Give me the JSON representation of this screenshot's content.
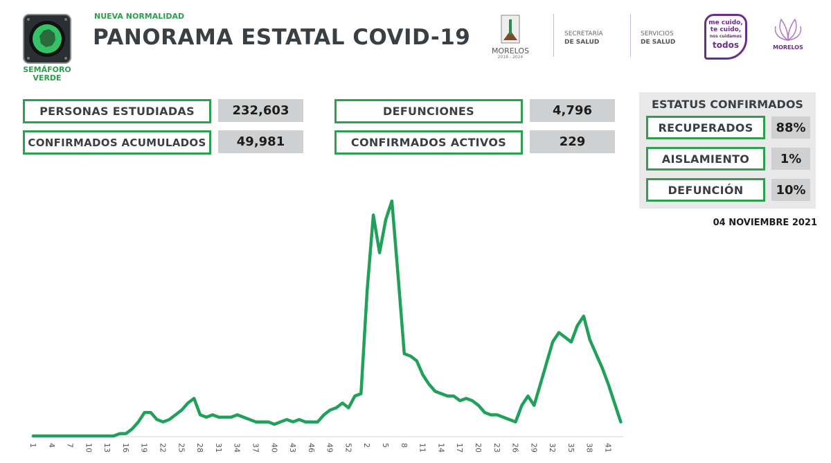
{
  "header": {
    "badge_label": "SEMÁFORO VERDE",
    "badge_line1": "SEMÁFORO",
    "badge_line2": "VERDE",
    "subtitle": "NUEVA NORMALIDAD",
    "title": "PANORAMA ESTATAL COVID-19",
    "logos": {
      "morelos": "MORELOS",
      "morelos_years": "2018 - 2024",
      "secretaria_line1": "SECRETARÍA",
      "secretaria_line2": "DE SALUD",
      "servicios_line1": "SERVICIOS",
      "servicios_line2": "DE SALUD",
      "campaign_line1": "me cuido,",
      "campaign_line2": "te cuido,",
      "campaign_line3": "nos cuidamos",
      "campaign_line4": "todos",
      "morelos2": "MORELOS"
    }
  },
  "stats": [
    {
      "label": "PERSONAS ESTUDIADAS",
      "value": "232,603"
    },
    {
      "label": "CONFIRMADOS ACUMULADOS",
      "value": "49,981"
    },
    {
      "label": "DEFUNCIONES",
      "value": "4,796"
    },
    {
      "label": "CONFIRMADOS ACTIVOS",
      "value": "229"
    }
  ],
  "status": {
    "title": "ESTATUS CONFIRMADOS",
    "items": [
      {
        "label": "RECUPERADOS",
        "value": "88%"
      },
      {
        "label": "AISLAMIENTO",
        "value": "1%"
      },
      {
        "label": "DEFUNCIÓN",
        "value": "10%"
      }
    ]
  },
  "date": "04 NOVIEMBRE 2021",
  "colors": {
    "accent": "#2e9e50",
    "line": "#1fa15a",
    "value_bg": "#cfd0d1",
    "panel_bg": "#e9e9e9",
    "title": "#3a3f44"
  },
  "chart_data": {
    "type": "line",
    "title": "",
    "xlabel": "",
    "ylabel": "",
    "note_y": "relative scale, no y-axis printed (peak = 100)",
    "grid": false,
    "x": [
      1,
      2,
      3,
      4,
      5,
      6,
      7,
      8,
      9,
      10,
      11,
      12,
      13,
      14,
      15,
      16,
      17,
      18,
      19,
      20,
      21,
      22,
      23,
      24,
      25,
      26,
      27,
      28,
      29,
      30,
      31,
      32,
      33,
      34,
      35,
      36,
      37,
      38,
      39,
      40,
      41,
      42,
      43,
      44,
      45,
      46,
      47,
      48,
      49,
      50,
      51,
      52,
      53,
      1,
      2,
      3,
      4,
      5,
      6,
      7,
      8,
      9,
      10,
      11,
      12,
      13,
      14,
      15,
      16,
      17,
      18,
      19,
      20,
      21,
      22,
      23,
      24,
      25,
      26,
      27,
      28,
      29,
      30,
      31,
      32,
      33,
      34,
      35,
      36,
      37,
      38,
      39,
      40,
      41,
      42,
      43
    ],
    "tick_labels": [
      "1",
      "4",
      "7",
      "10",
      "13",
      "16",
      "19",
      "22",
      "25",
      "28",
      "31",
      "34",
      "37",
      "40",
      "43",
      "46",
      "49",
      "52",
      "2",
      "5",
      "8",
      "11",
      "14",
      "17",
      "20",
      "23",
      "26",
      "29",
      "32",
      "35",
      "38",
      "41"
    ],
    "tick_every": 3,
    "values": [
      0,
      0,
      0,
      0,
      0,
      0,
      0,
      0,
      0,
      0,
      0,
      0,
      0,
      0,
      1,
      1,
      3,
      6,
      10,
      10,
      7,
      6,
      7,
      9,
      11,
      14,
      16,
      9,
      8,
      9,
      8,
      8,
      8,
      9,
      8,
      7,
      6,
      6,
      6,
      5,
      6,
      7,
      6,
      7,
      6,
      6,
      6,
      9,
      11,
      12,
      14,
      12,
      17,
      18,
      62,
      94,
      78,
      92,
      100,
      68,
      35,
      34,
      32,
      26,
      22,
      19,
      18,
      17,
      17,
      15,
      16,
      15,
      13,
      10,
      9,
      9,
      8,
      7,
      6,
      13,
      17,
      13,
      22,
      31,
      40,
      44,
      42,
      40,
      47,
      51,
      41,
      35,
      29,
      22,
      14,
      6
    ]
  }
}
